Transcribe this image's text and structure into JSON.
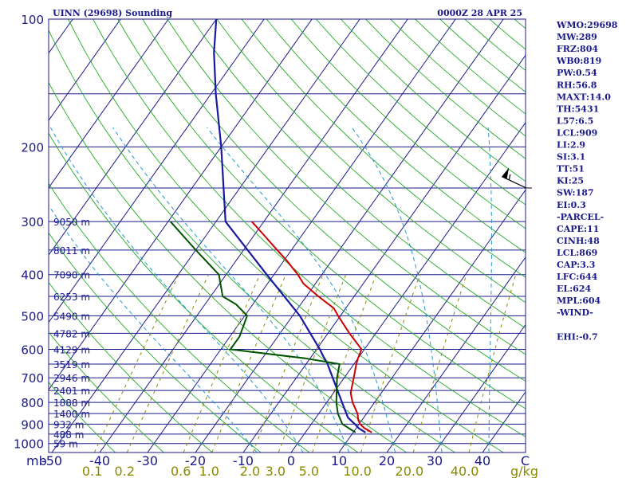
{
  "header": {
    "station": "UINN (29698) Sounding",
    "time": "0000Z 28 APR 25"
  },
  "indices": [
    "WMO:29698",
    "MW:289",
    "FRZ:804",
    "WB0:819",
    "PW:0.54",
    "RH:56.8",
    "MAXT:14.0",
    "TH:5431",
    "L57:6.5",
    "LCL:909",
    "LI:2.9",
    "SI:3.1",
    "TT:51",
    "KI:25",
    "SW:187",
    "EI:0.3",
    "-PARCEL-",
    "CAPE:11",
    "CINH:48",
    "LCL:869",
    "CAP:3.3",
    "LFC:644",
    "EL:624",
    "MPL:604",
    "-WIND-",
    "",
    "EHI:-0.7"
  ],
  "colors": {
    "frame": "#1a1a8c",
    "isobar": "#1a1a8c",
    "isotherm": "#1a1a8c",
    "dry_adiabat": "#22aa22",
    "moist_adiabat": "#2299cc",
    "mixing_ratio": "#8a8a00",
    "temperature": "#cc0000",
    "dewpoint": "#005500",
    "parcel": "#1a1aa0",
    "wind": "#000000"
  },
  "chart_data": {
    "type": "skew-t",
    "title": "UINN (29698) Sounding",
    "time": "0000Z 28 APR 25",
    "xlabel": "C",
    "pressure_unit": "mb",
    "mixing_ratio_unit": "g/kg",
    "pressure_ticks": [
      100,
      200,
      300,
      400,
      500,
      600,
      700,
      800,
      900,
      1000
    ],
    "temperature_ticks": [
      -50,
      -40,
      -30,
      -20,
      -10,
      0,
      10,
      20,
      30,
      40
    ],
    "temperature_tick_labels": [
      "-50",
      "-40",
      "-30",
      "-20",
      "-10",
      "0",
      "10",
      "20",
      "30",
      "40"
    ],
    "mixing_ratio_labels": [
      {
        "value": 0.1,
        "label": "0.1"
      },
      {
        "value": 0.2,
        "label": "0.2"
      },
      {
        "value": 0.6,
        "label": "0.6"
      },
      {
        "value": 1.0,
        "label": "1.0"
      },
      {
        "value": 2.0,
        "label": "2.0"
      },
      {
        "value": 3.0,
        "label": "3.0"
      },
      {
        "value": 5.0,
        "label": "5.0"
      },
      {
        "value": 10.0,
        "label": "10.0"
      },
      {
        "value": 20.0,
        "label": "20.0"
      },
      {
        "value": 40.0,
        "label": "40.0"
      }
    ],
    "height_labels": [
      {
        "p": 300,
        "label": "9050 m"
      },
      {
        "p": 350,
        "label": "8011 m"
      },
      {
        "p": 400,
        "label": "7090 m"
      },
      {
        "p": 450,
        "label": "6253 m"
      },
      {
        "p": 500,
        "label": "5490 m"
      },
      {
        "p": 550,
        "label": "4782 m"
      },
      {
        "p": 600,
        "label": "4129 m"
      },
      {
        "p": 650,
        "label": "3519 m"
      },
      {
        "p": 700,
        "label": "2946 m"
      },
      {
        "p": 750,
        "label": "2401 m"
      },
      {
        "p": 800,
        "label": "1888 m"
      },
      {
        "p": 850,
        "label": "1400 m"
      },
      {
        "p": 900,
        "label": "932 m"
      },
      {
        "p": 950,
        "label": "488 m"
      },
      {
        "p": 1000,
        "label": "59 m"
      }
    ],
    "temperature": [
      [
        942,
        13.9
      ],
      [
        920,
        11.7
      ],
      [
        900,
        10.2
      ],
      [
        880,
        9.2
      ],
      [
        850,
        8.1
      ],
      [
        800,
        5.4
      ],
      [
        760,
        3.6
      ],
      [
        700,
        2.0
      ],
      [
        650,
        0.5
      ],
      [
        630,
        0.0
      ],
      [
        600,
        -0.6
      ],
      [
        580,
        -2.5
      ],
      [
        550,
        -5.5
      ],
      [
        500,
        -10.5
      ],
      [
        480,
        -12.5
      ],
      [
        450,
        -17.5
      ],
      [
        420,
        -22.5
      ],
      [
        400,
        -25.0
      ],
      [
        370,
        -29.5
      ],
      [
        350,
        -33.0
      ],
      [
        320,
        -38.5
      ],
      [
        300,
        -42.5
      ]
    ],
    "dewpoint": [
      [
        942,
        10.5
      ],
      [
        900,
        6.5
      ],
      [
        850,
        4.0
      ],
      [
        800,
        2.0
      ],
      [
        700,
        -1.5
      ],
      [
        650,
        -3.0
      ],
      [
        630,
        -11.0
      ],
      [
        600,
        -28.0
      ],
      [
        560,
        -28.0
      ],
      [
        500,
        -29.5
      ],
      [
        470,
        -33.5
      ],
      [
        450,
        -37.5
      ],
      [
        400,
        -41.5
      ],
      [
        350,
        -50.0
      ],
      [
        300,
        -59.5
      ]
    ],
    "parcel": [
      [
        942,
        12.6
      ],
      [
        920,
        10.5
      ],
      [
        900,
        9.1
      ],
      [
        869,
        6.7
      ],
      [
        800,
        3.2
      ],
      [
        700,
        -2.4
      ],
      [
        644,
        -5.9
      ],
      [
        624,
        -7.5
      ],
      [
        600,
        -9.3
      ],
      [
        500,
        -18.5
      ],
      [
        400,
        -31.5
      ],
      [
        300,
        -48.0
      ],
      [
        200,
        -60.0
      ],
      [
        150,
        -69.0
      ],
      [
        120,
        -75.5
      ],
      [
        100,
        -80.0
      ]
    ],
    "wind_barb": {
      "p": 250,
      "direction_deg": 295,
      "speed_kt": 55
    },
    "grid": true
  }
}
